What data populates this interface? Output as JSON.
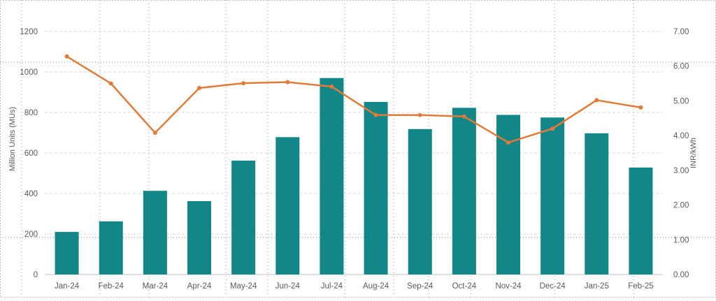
{
  "chart_data": {
    "type": "bar",
    "categories": [
      "Jan-24",
      "Feb-24",
      "Mar-24",
      "Apr-24",
      "May-24",
      "Jun-24",
      "Jul-24",
      "Aug-24",
      "Sep-24",
      "Oct-24",
      "Nov-24",
      "Dec-24",
      "Jan-25",
      "Feb-25"
    ],
    "series": [
      {
        "type": "bar",
        "axis": "left",
        "values": [
          210,
          262,
          413,
          362,
          562,
          678,
          970,
          852,
          718,
          823,
          788,
          775,
          697,
          528
        ],
        "color": "#138787"
      },
      {
        "type": "line",
        "axis": "right",
        "values": [
          6.28,
          5.5,
          4.08,
          5.37,
          5.51,
          5.54,
          5.41,
          4.59,
          4.59,
          4.55,
          3.8,
          4.2,
          5.02,
          4.81
        ],
        "color": "#E07B39"
      }
    ],
    "ylabel": "Million Units (MUs)",
    "y2label": "INR/kWh",
    "ylim": [
      0,
      1200
    ],
    "y2lim": [
      0,
      7
    ],
    "yticks": [
      "0",
      "200",
      "400",
      "600",
      "800",
      "1000",
      "1200"
    ],
    "y2ticks": [
      "0.00",
      "1.00",
      "2.00",
      "3.00",
      "4.00",
      "5.00",
      "6.00",
      "7.00"
    ],
    "grid": true
  }
}
